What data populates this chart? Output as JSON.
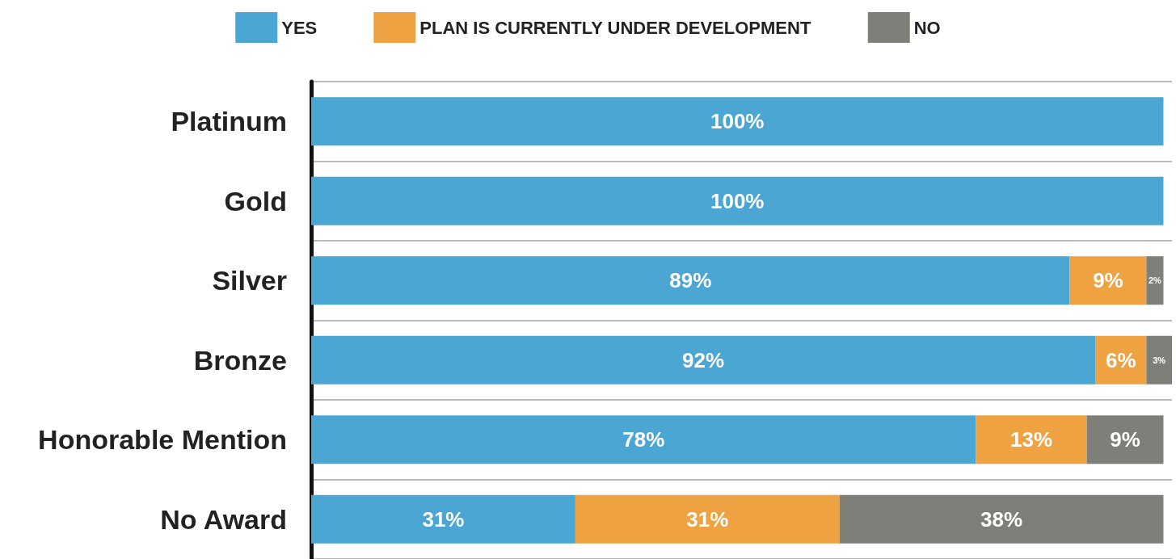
{
  "chart_data": {
    "type": "bar",
    "orientation": "horizontal",
    "stacked": true,
    "categories": [
      "Platinum",
      "Gold",
      "Silver",
      "Bronze",
      "Honorable Mention",
      "No Award"
    ],
    "series": [
      {
        "name": "YES",
        "color": "#4ba6d3",
        "values": [
          100,
          100,
          89,
          92,
          78,
          31
        ],
        "value_labels": [
          "100%",
          "100%",
          "89%",
          "92%",
          "78%",
          "31%"
        ]
      },
      {
        "name": "PLAN IS CURRENTLY UNDER DEVELOPMENT",
        "color": "#eea242",
        "values": [
          0,
          0,
          9,
          6,
          13,
          31
        ],
        "value_labels": [
          null,
          null,
          "9%",
          "6%",
          "13%",
          "31%"
        ]
      },
      {
        "name": "NO",
        "color": "#7f7f7a",
        "values": [
          0,
          0,
          2,
          3,
          9,
          38
        ],
        "value_labels": [
          null,
          null,
          "2%",
          "3%",
          "9%",
          "38%"
        ]
      }
    ],
    "legend": "top",
    "grid": "y"
  }
}
